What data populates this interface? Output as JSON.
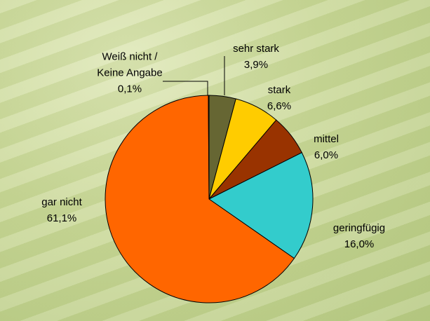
{
  "chart_data": {
    "type": "pie",
    "categories": [
      "sehr stark",
      "stark",
      "mittel",
      "geringfügig",
      "gar nicht",
      "Weiß nicht /\nKeine Angabe"
    ],
    "values": [
      3.9,
      6.6,
      6.0,
      16.0,
      61.1,
      0.1
    ],
    "value_labels": [
      "3,9%",
      "6,6%",
      "6,0%",
      "16,0%",
      "61,1%",
      "0,1%"
    ],
    "colors": [
      "#666633",
      "#ffcc00",
      "#993300",
      "#33cccc",
      "#ff6600",
      "#cccc99"
    ]
  }
}
